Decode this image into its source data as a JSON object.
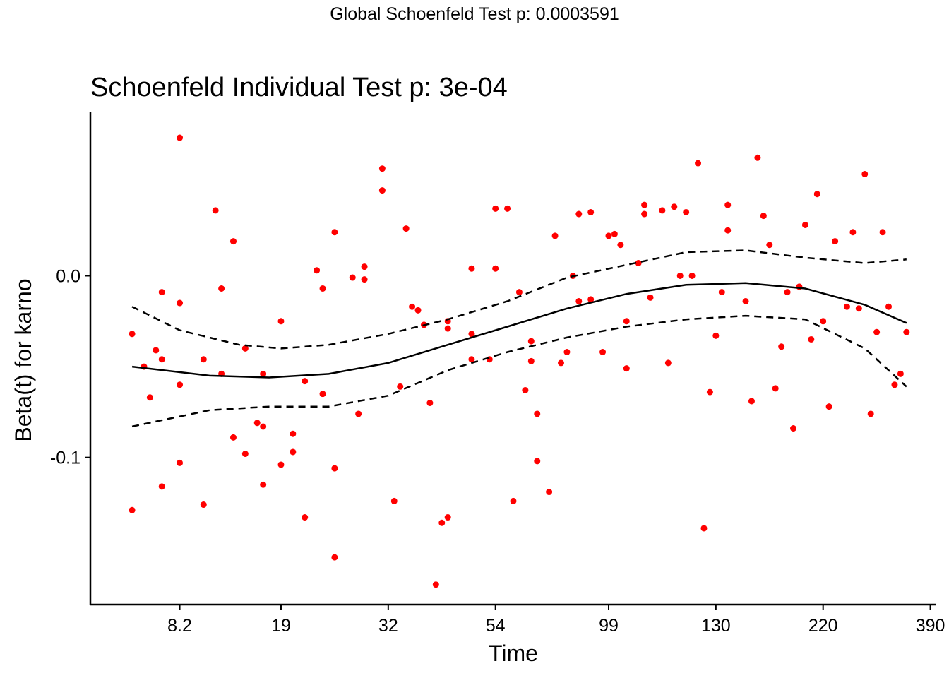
{
  "page": {
    "title": "Global Schoenfeld Test p: 0.0003591"
  },
  "chart_data": {
    "type": "scatter",
    "title": "Schoenfeld Individual Test p: 3e-04",
    "xlabel": "Time",
    "ylabel": "Beta(t) for karno",
    "xlim": [
      0,
      142
    ],
    "ylim": [
      -0.181,
      0.09
    ],
    "x_ticks": [
      {
        "value": 15,
        "label": "8.2"
      },
      {
        "value": 32,
        "label": "19"
      },
      {
        "value": 50,
        "label": "32"
      },
      {
        "value": 68,
        "label": "54"
      },
      {
        "value": 87,
        "label": "99"
      },
      {
        "value": 105,
        "label": "130"
      },
      {
        "value": 123,
        "label": "220"
      },
      {
        "value": 141,
        "label": "390"
      }
    ],
    "y_ticks": [
      {
        "value": 0.0,
        "label": "0.0"
      },
      {
        "value": -0.1,
        "label": "-0.1"
      }
    ],
    "grid": false,
    "point_color": "#ff0000",
    "line_color": "#000000",
    "series": [
      {
        "kind": "points",
        "points": [
          [
            7,
            -0.032
          ],
          [
            7,
            -0.129
          ],
          [
            9,
            -0.05
          ],
          [
            10,
            -0.067
          ],
          [
            11,
            -0.041
          ],
          [
            12,
            -0.009
          ],
          [
            12,
            -0.046
          ],
          [
            12,
            -0.116
          ],
          [
            15,
            0.076
          ],
          [
            15,
            -0.015
          ],
          [
            15,
            -0.06
          ],
          [
            15,
            -0.103
          ],
          [
            19,
            -0.046
          ],
          [
            19,
            -0.126
          ],
          [
            21,
            0.036
          ],
          [
            22,
            -0.007
          ],
          [
            22,
            -0.054
          ],
          [
            24,
            0.019
          ],
          [
            24,
            -0.089
          ],
          [
            26,
            -0.04
          ],
          [
            26,
            -0.098
          ],
          [
            28,
            -0.081
          ],
          [
            29,
            -0.054
          ],
          [
            29,
            -0.083
          ],
          [
            29,
            -0.115
          ],
          [
            32,
            -0.025
          ],
          [
            32,
            -0.104
          ],
          [
            34,
            -0.087
          ],
          [
            34,
            -0.097
          ],
          [
            36,
            -0.058
          ],
          [
            36,
            -0.133
          ],
          [
            38,
            0.003
          ],
          [
            39,
            -0.007
          ],
          [
            39,
            -0.065
          ],
          [
            41,
            0.024
          ],
          [
            41,
            -0.106
          ],
          [
            41,
            -0.155
          ],
          [
            44,
            -0.001
          ],
          [
            45,
            -0.076
          ],
          [
            46,
            0.005
          ],
          [
            46,
            -0.002
          ],
          [
            49,
            0.059
          ],
          [
            49,
            0.047
          ],
          [
            51,
            -0.124
          ],
          [
            52,
            -0.061
          ],
          [
            53,
            0.026
          ],
          [
            54,
            -0.017
          ],
          [
            55,
            -0.019
          ],
          [
            56,
            -0.027
          ],
          [
            57,
            -0.07
          ],
          [
            58,
            -0.17
          ],
          [
            59,
            -0.136
          ],
          [
            60,
            -0.025
          ],
          [
            60,
            -0.029
          ],
          [
            60,
            -0.133
          ],
          [
            64,
            0.004
          ],
          [
            64,
            -0.032
          ],
          [
            64,
            -0.046
          ],
          [
            67,
            -0.046
          ],
          [
            68,
            0.037
          ],
          [
            68,
            0.004
          ],
          [
            70,
            0.037
          ],
          [
            71,
            -0.124
          ],
          [
            72,
            -0.009
          ],
          [
            73,
            -0.063
          ],
          [
            74,
            -0.036
          ],
          [
            74,
            -0.047
          ],
          [
            75,
            -0.076
          ],
          [
            75,
            -0.102
          ],
          [
            77,
            -0.119
          ],
          [
            78,
            0.022
          ],
          [
            79,
            -0.048
          ],
          [
            80,
            -0.042
          ],
          [
            81,
            -0.0
          ],
          [
            82,
            0.034
          ],
          [
            82,
            -0.014
          ],
          [
            84,
            0.035
          ],
          [
            84,
            -0.013
          ],
          [
            86,
            -0.042
          ],
          [
            87,
            0.022
          ],
          [
            88,
            0.023
          ],
          [
            89,
            0.017
          ],
          [
            90,
            -0.025
          ],
          [
            90,
            -0.051
          ],
          [
            92,
            0.007
          ],
          [
            93,
            0.039
          ],
          [
            93,
            0.034
          ],
          [
            94,
            -0.012
          ],
          [
            96,
            0.036
          ],
          [
            97,
            -0.048
          ],
          [
            98,
            0.038
          ],
          [
            99,
            0.0
          ],
          [
            100,
            0.035
          ],
          [
            101,
            0.0
          ],
          [
            102,
            0.062
          ],
          [
            103,
            -0.139
          ],
          [
            104,
            -0.064
          ],
          [
            105,
            -0.033
          ],
          [
            106,
            -0.009
          ],
          [
            107,
            0.039
          ],
          [
            107,
            0.025
          ],
          [
            110,
            -0.014
          ],
          [
            111,
            -0.069
          ],
          [
            112,
            0.065
          ],
          [
            113,
            0.033
          ],
          [
            114,
            0.017
          ],
          [
            115,
            -0.062
          ],
          [
            116,
            -0.039
          ],
          [
            117,
            -0.009
          ],
          [
            118,
            -0.084
          ],
          [
            119,
            -0.006
          ],
          [
            120,
            0.028
          ],
          [
            121,
            -0.035
          ],
          [
            122,
            0.045
          ],
          [
            123,
            -0.025
          ],
          [
            124,
            -0.072
          ],
          [
            125,
            0.019
          ],
          [
            127,
            -0.017
          ],
          [
            128,
            0.024
          ],
          [
            129,
            -0.018
          ],
          [
            130,
            0.056
          ],
          [
            131,
            -0.076
          ],
          [
            132,
            -0.031
          ],
          [
            133,
            0.024
          ],
          [
            134,
            -0.017
          ],
          [
            135,
            -0.06
          ],
          [
            136,
            -0.054
          ],
          [
            137,
            -0.031
          ]
        ]
      },
      {
        "kind": "line",
        "name": "fit",
        "points": [
          [
            7,
            -0.05
          ],
          [
            20,
            -0.055
          ],
          [
            30,
            -0.056
          ],
          [
            40,
            -0.054
          ],
          [
            50,
            -0.048
          ],
          [
            60,
            -0.038
          ],
          [
            70,
            -0.028
          ],
          [
            80,
            -0.018
          ],
          [
            90,
            -0.01
          ],
          [
            100,
            -0.005
          ],
          [
            110,
            -0.004
          ],
          [
            120,
            -0.007
          ],
          [
            130,
            -0.016
          ],
          [
            137,
            -0.026
          ]
        ]
      },
      {
        "kind": "dashed",
        "name": "upper",
        "points": [
          [
            7,
            -0.017
          ],
          [
            15,
            -0.03
          ],
          [
            25,
            -0.038
          ],
          [
            32,
            -0.04
          ],
          [
            40,
            -0.038
          ],
          [
            50,
            -0.032
          ],
          [
            60,
            -0.024
          ],
          [
            70,
            -0.014
          ],
          [
            80,
            -0.001
          ],
          [
            90,
            0.006
          ],
          [
            100,
            0.013
          ],
          [
            110,
            0.014
          ],
          [
            120,
            0.01
          ],
          [
            130,
            0.007
          ],
          [
            137,
            0.009
          ]
        ]
      },
      {
        "kind": "dashed",
        "name": "lower",
        "points": [
          [
            7,
            -0.083
          ],
          [
            20,
            -0.074
          ],
          [
            30,
            -0.072
          ],
          [
            40,
            -0.072
          ],
          [
            50,
            -0.066
          ],
          [
            60,
            -0.052
          ],
          [
            70,
            -0.042
          ],
          [
            80,
            -0.034
          ],
          [
            90,
            -0.028
          ],
          [
            100,
            -0.024
          ],
          [
            110,
            -0.022
          ],
          [
            120,
            -0.024
          ],
          [
            130,
            -0.04
          ],
          [
            137,
            -0.061
          ]
        ]
      }
    ]
  }
}
